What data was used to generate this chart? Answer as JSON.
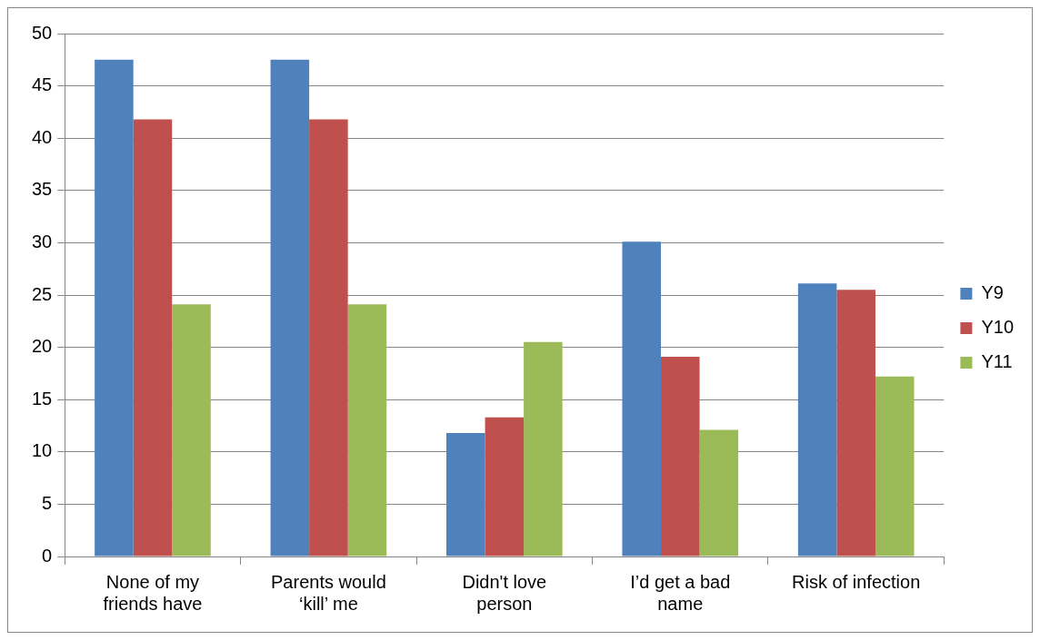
{
  "chart_data": {
    "type": "bar",
    "categories": [
      "None of my friends have",
      "Parents would ‘kill’ me",
      "Didn't love person",
      "I’d get a bad name",
      "Risk of infection"
    ],
    "series": [
      {
        "name": "Y9",
        "color": "#4f81bd",
        "values": [
          47.5,
          47.5,
          11.8,
          30.1,
          26.1
        ]
      },
      {
        "name": "Y10",
        "color": "#c0504d",
        "values": [
          41.8,
          41.8,
          13.3,
          19.1,
          25.5
        ]
      },
      {
        "name": "Y11",
        "color": "#9bbb59",
        "values": [
          24.1,
          24.1,
          20.5,
          12.1,
          17.2
        ]
      }
    ],
    "ylim": [
      0,
      50
    ],
    "yticks": [
      0,
      5,
      10,
      15,
      20,
      25,
      30,
      35,
      40,
      45,
      50
    ],
    "grid": "y",
    "legend": "right"
  }
}
